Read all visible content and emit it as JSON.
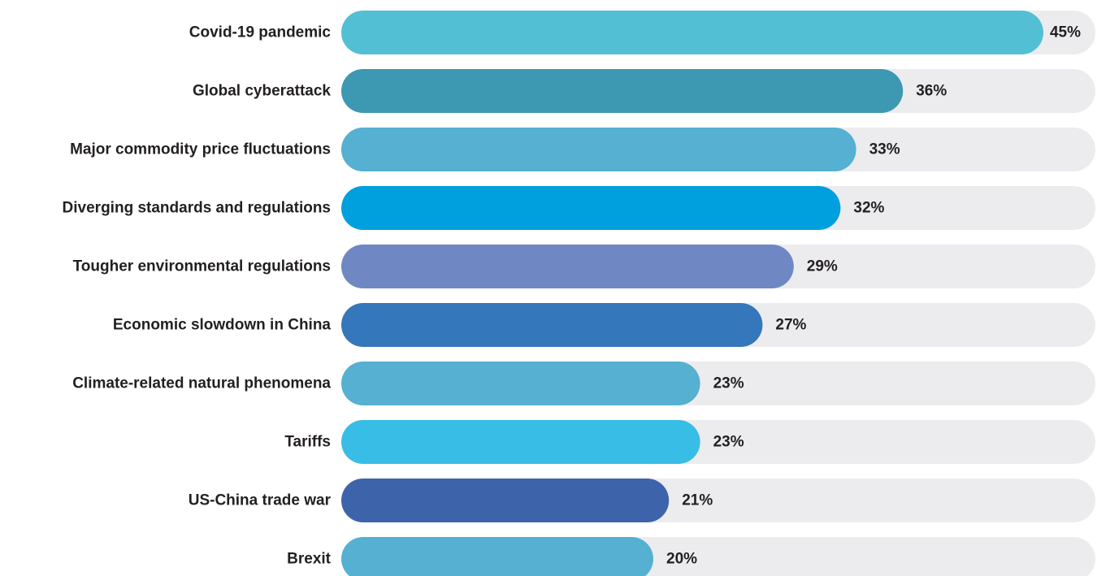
{
  "chart_data": {
    "type": "bar",
    "orientation": "horizontal",
    "categories": [
      "Covid-19 pandemic",
      "Global cyberattack",
      "Major commodity price fluctuations",
      "Diverging standards and regulations",
      "Tougher environmental regulations",
      "Economic slowdown in China",
      "Climate-related natural phenomena",
      "Tariffs",
      "US-China trade war",
      "Brexit"
    ],
    "values": [
      45,
      36,
      33,
      32,
      29,
      27,
      23,
      23,
      21,
      20
    ],
    "value_labels": [
      "45%",
      "36%",
      "33%",
      "32%",
      "29%",
      "27%",
      "23%",
      "23%",
      "21%",
      "20%"
    ],
    "colors": [
      "#52bfd5",
      "#3d98b2",
      "#55b0d2",
      "#009fde",
      "#6f88c3",
      "#3577bb",
      "#55b0d2",
      "#38bde6",
      "#3d64ab",
      "#55b0d2"
    ],
    "track_color": "#ececee",
    "xlim": [
      0,
      50
    ],
    "grid": false,
    "legend": "none"
  }
}
